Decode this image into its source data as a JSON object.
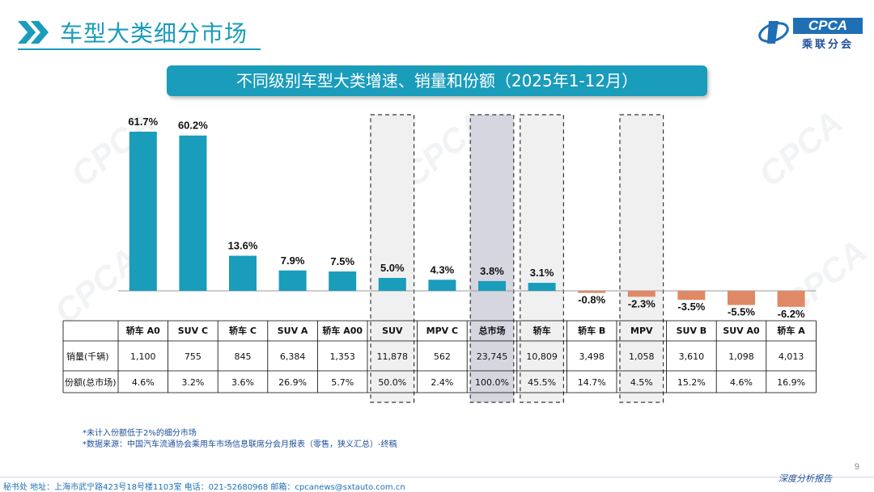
{
  "page": {
    "title": "车型大类细分市场",
    "logo_badge": "CPCA",
    "logo_cn": "乘联分会",
    "watermark": "CPCA",
    "subtitle": "不同级别车型大类增速、销量和份额（2025年1-12月）",
    "footnote1": "*未计入份额低于2%的细分市场",
    "footnote2": "*数据来源：中国汽车流通协会乘用车市场信息联席分会月报表（零售，狭义汇总）-终稿",
    "footer_address": "秘书处  地址：上海市武宁路423号18号楼1103室  电话：021-52680968  邮箱：cpcanews@sxtauto.com.cn",
    "footer_report": "深度分析报告",
    "page_number": "9"
  },
  "colors": {
    "accent": "#1a9cbb",
    "positive_bar": "#1a9cbb",
    "negative_bar": "#e08966",
    "highlight_fill": "#d6d6e0",
    "box_fill": "#f0f0f0"
  },
  "chart_data": {
    "type": "bar",
    "title": "不同级别车型大类增速、销量和份额（2025年1-12月）",
    "categories": [
      "轿车 A0",
      "SUV C",
      "轿车 C",
      "SUV A",
      "轿车 A00",
      "SUV",
      "MPV C",
      "总市场",
      "轿车",
      "轿车 B",
      "MPV",
      "SUV B",
      "SUV A0",
      "轿车 A"
    ],
    "growth_labels": [
      "61.7%",
      "60.2%",
      "13.6%",
      "7.9%",
      "7.5%",
      "5.0%",
      "4.3%",
      "3.8%",
      "3.1%",
      "-0.8%",
      "-2.3%",
      "-3.5%",
      "-5.5%",
      "-6.2%"
    ],
    "series": [
      {
        "name": "增速",
        "values": [
          61.7,
          60.2,
          13.6,
          7.9,
          7.5,
          5.0,
          4.3,
          3.8,
          3.1,
          -0.8,
          -2.3,
          -3.5,
          -5.5,
          -6.2
        ]
      }
    ],
    "ylim": [
      -7,
      62
    ],
    "boxed_categories": [
      "SUV",
      "总市场",
      "轿车",
      "MPV"
    ],
    "highlight_category": "总市场",
    "table": {
      "row_labels": [
        "销量(千辆)",
        "份额(总市场)"
      ],
      "sales": [
        "1,100",
        "755",
        "845",
        "6,384",
        "1,353",
        "11,878",
        "562",
        "23,745",
        "10,809",
        "3,498",
        "1,058",
        "3,610",
        "1,098",
        "4,013"
      ],
      "share": [
        "4.6%",
        "3.2%",
        "3.6%",
        "26.9%",
        "5.7%",
        "50.0%",
        "2.4%",
        "100.0%",
        "45.5%",
        "14.7%",
        "4.5%",
        "15.2%",
        "4.6%",
        "16.9%"
      ]
    }
  }
}
